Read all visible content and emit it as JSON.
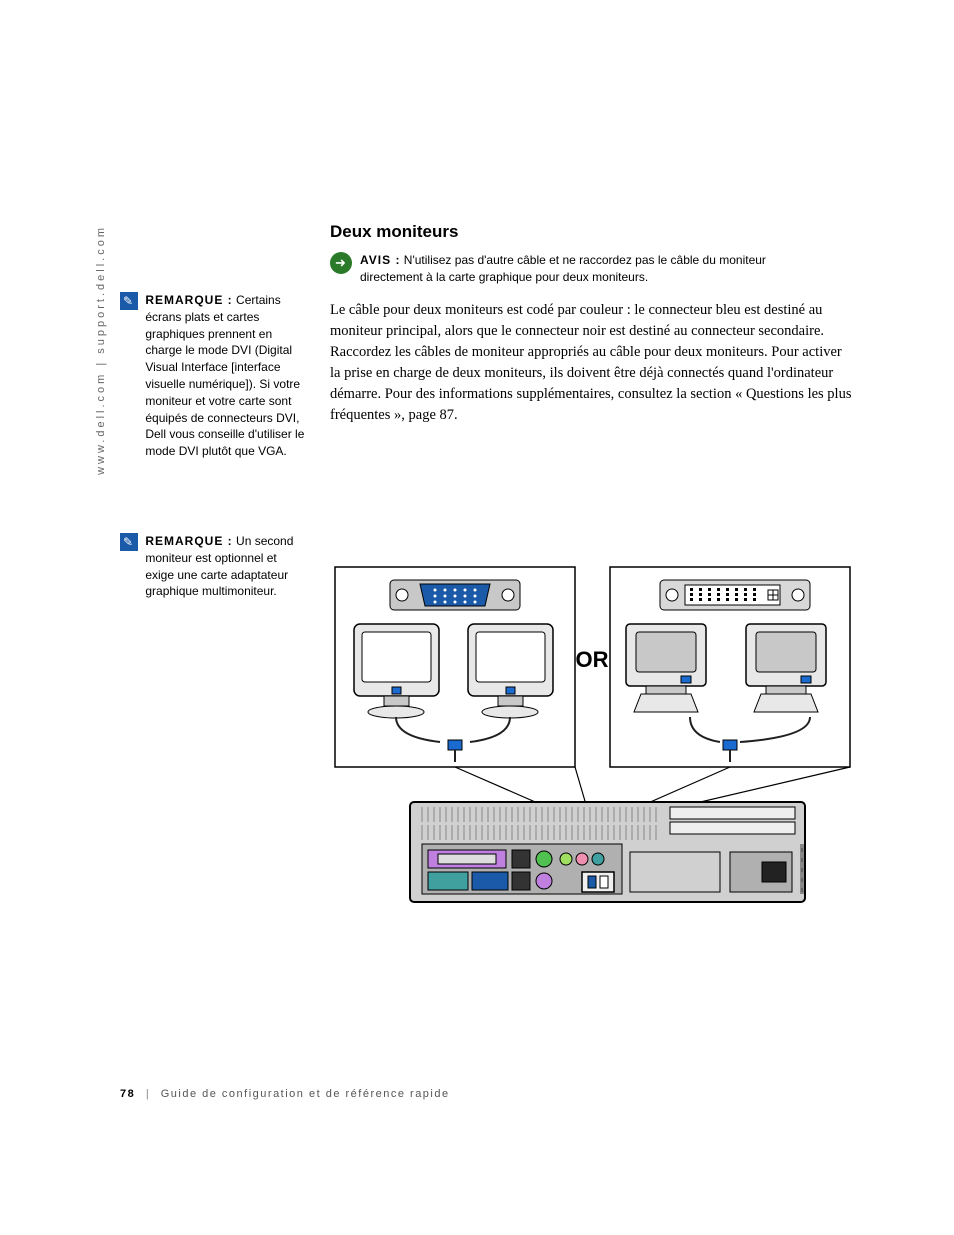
{
  "vertical_header": "www.dell.com | support.dell.com",
  "heading": "Deux moniteurs",
  "avis": {
    "label": "AVIS :",
    "text": "N'utilisez pas d'autre câble et ne raccordez pas le câble du moniteur directement à la carte graphique pour deux moniteurs."
  },
  "body": "Le câble pour deux moniteurs est codé par couleur : le connecteur bleu est destiné au moniteur principal, alors que le connecteur noir est destiné au connecteur secondaire. Raccordez les câbles de moniteur appropriés au câble pour deux moniteurs. Pour activer la prise en charge de deux moniteurs, ils doivent être déjà connectés quand l'ordinateur démarre. Pour des informations supplémentaires, consultez la section « Questions les plus fréquentes », page 87.",
  "remarques": [
    {
      "label": "REMARQUE :",
      "text": "Certains écrans plats et cartes graphiques prennent en charge le mode DVI (Digital Visual Interface [interface visuelle numérique]). Si votre moniteur et votre carte sont équipés de connecteurs DVI, Dell vous conseille d'utiliser le mode DVI plutôt que VGA."
    },
    {
      "label": "REMARQUE :",
      "text": "Un second moniteur est optionnel et exige une carte adaptateur graphique multimoniteur."
    }
  ],
  "diagram": {
    "or_label": "OR",
    "colors": {
      "monitor_body": "#e8e8e8",
      "monitor_body_dark": "#c8c8c8",
      "monitor_stroke": "#000000",
      "vga_connector": "#1a5aa8",
      "vga_shell": "#c8c8c8",
      "dvi_shell": "#d8d8d8",
      "dvi_body": "#ffffff",
      "computer_body": "#d0d0d0",
      "computer_dark": "#b0b0b0",
      "port_violet": "#c080e0",
      "port_green": "#50c050",
      "port_teal": "#40a0a0",
      "port_pink": "#f090b0",
      "port_lime": "#a0e060",
      "port_blue": "#1a5aa8",
      "cable_blue": "#1a6ad0",
      "cable_black": "#202020"
    }
  },
  "footer": {
    "page": "78",
    "title": "Guide de configuration et de référence rapide"
  }
}
